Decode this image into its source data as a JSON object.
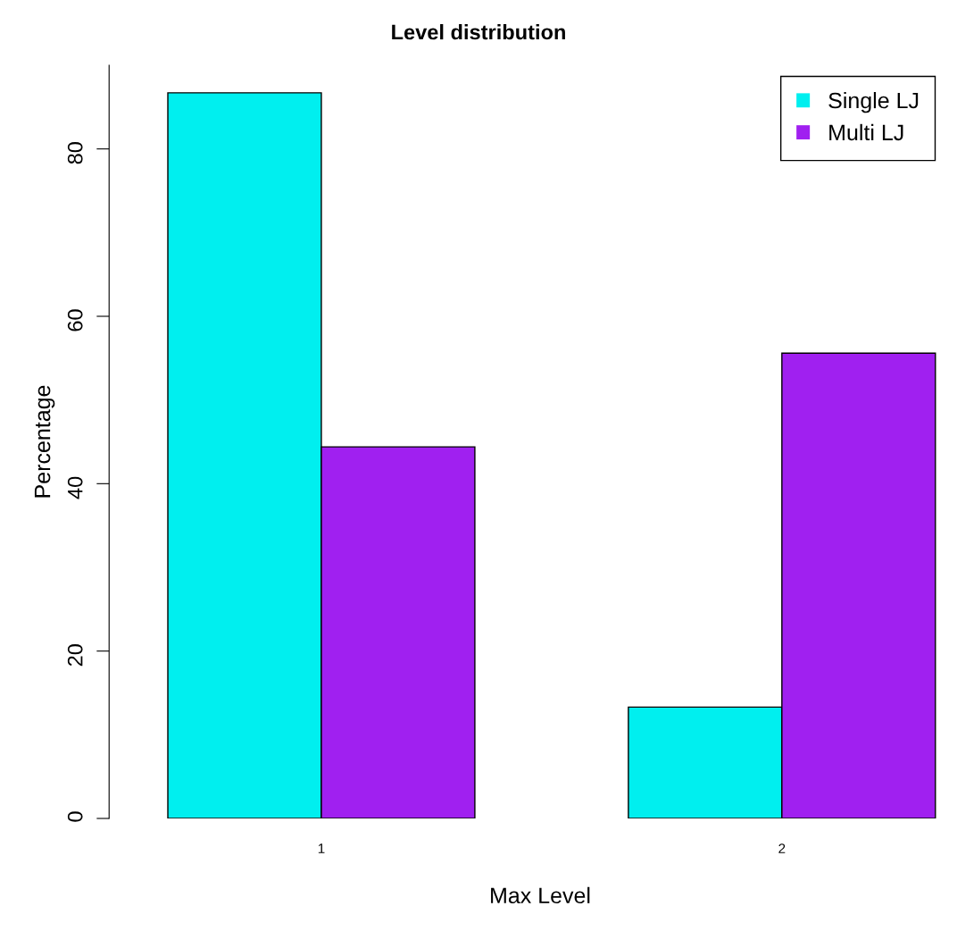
{
  "chart_data": {
    "type": "bar",
    "title": "Level distribution",
    "xlabel": "Max Level",
    "ylabel": "Percentage",
    "categories": [
      "1",
      "2"
    ],
    "series": [
      {
        "name": "Single LJ",
        "color": "#00efef",
        "values": [
          86.7,
          13.3
        ]
      },
      {
        "name": "Multi LJ",
        "color": "#a020f0",
        "values": [
          44.4,
          55.6
        ]
      }
    ],
    "ylim": [
      0,
      90
    ],
    "yticks": [
      0,
      20,
      40,
      60,
      80
    ],
    "grid": false,
    "legend": "top right"
  }
}
